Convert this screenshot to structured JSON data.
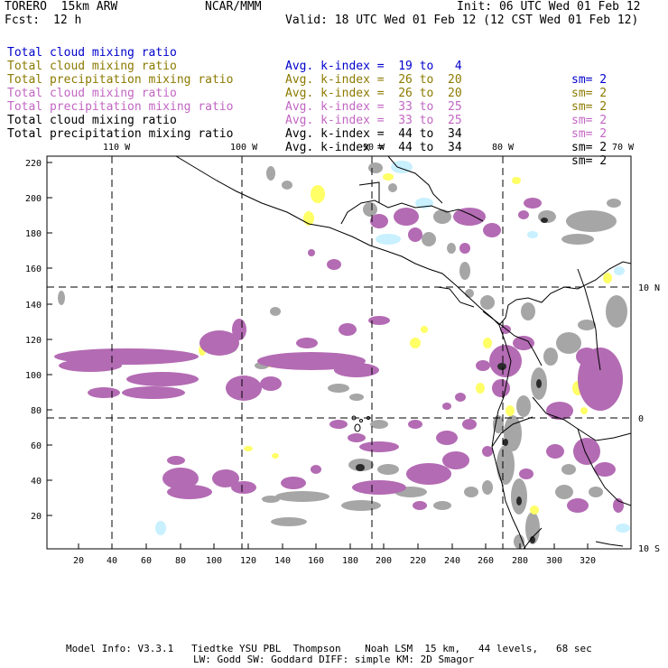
{
  "header": {
    "model": "TORERO  15km ARW",
    "org": "NCAR/MMM",
    "init": "Init: 06 UTC Wed 01 Feb 12",
    "fcst_label": "Fcst:",
    "fcst_value": "12 h",
    "valid": "Valid: 18 UTC Wed 01 Feb 12 (12 CST Wed 01 Feb 12)"
  },
  "legend": [
    {
      "name": "Total cloud mixing ratio",
      "kindex": "Avg. k-index =  19 to   4",
      "sm": "sm= 2",
      "color": "#0000cc"
    },
    {
      "name": "Total cloud mixing ratio",
      "kindex": "Avg. k-index =  26 to  20",
      "sm": "sm= 2",
      "color": "#8c7a00"
    },
    {
      "name": "Total precipitation mixing ratio",
      "kindex": "Avg. k-index =  26 to  20",
      "sm": "sm= 2",
      "color": "#8c7a00"
    },
    {
      "name": "Total cloud mixing ratio",
      "kindex": "Avg. k-index =  33 to  25",
      "sm": "sm= 2",
      "color": "#c266c2"
    },
    {
      "name": "Total precipitation mixing ratio",
      "kindex": "Avg. k-index =  33 to  25",
      "sm": "sm= 2",
      "color": "#c266c2"
    },
    {
      "name": "Total cloud mixing ratio",
      "kindex": "Avg. k-index =  44 to  34",
      "sm": "sm= 2",
      "color": "#000000"
    },
    {
      "name": "Total precipitation mixing ratio",
      "kindex": "Avg. k-index =  44 to  34",
      "sm": "sm= 2",
      "color": "#000000"
    }
  ],
  "map": {
    "lon_labels": [
      "110 W",
      "100 W",
      "90 W",
      "80 W",
      "70 W"
    ],
    "lat_labels": [
      "10 N",
      "0",
      "10 S"
    ],
    "y_ticks": [
      "220",
      "200",
      "180",
      "160",
      "140",
      "120",
      "100",
      "80",
      "60",
      "40",
      "20"
    ],
    "x_ticks": [
      "20",
      "40",
      "60",
      "80",
      "100",
      "120",
      "140",
      "160",
      "180",
      "200",
      "220",
      "240",
      "260",
      "280",
      "300",
      "320"
    ],
    "colors": {
      "gray": "#a6a6a6",
      "purple": "#b36bb3",
      "yellow": "#ffff66",
      "cyan": "#c8f0ff",
      "dark": "#2a2a2a"
    }
  },
  "footer": {
    "line1": "Model Info: V3.3.1   Tiedtke YSU PBL  Thompson    Noah LSM  15 km,   44 levels,   68 sec",
    "line2": "LW: Godd SW: Goddard DIFF: simple KM: 2D Smagor"
  }
}
